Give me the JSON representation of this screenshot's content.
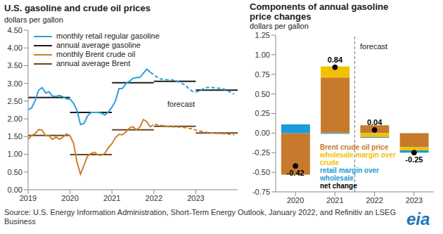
{
  "chart_data": [
    {
      "type": "line",
      "title": "U.S. gasoline and crude oil prices",
      "subtitle": "dollars per gallon",
      "annotation": "forecast",
      "forecast_start": 2022,
      "x": [
        2019,
        2019.083,
        2019.167,
        2019.25,
        2019.333,
        2019.417,
        2019.5,
        2019.583,
        2019.667,
        2019.75,
        2019.833,
        2019.917,
        2020,
        2020.083,
        2020.167,
        2020.25,
        2020.333,
        2020.417,
        2020.5,
        2020.583,
        2020.667,
        2020.75,
        2020.833,
        2020.917,
        2021,
        2021.083,
        2021.167,
        2021.25,
        2021.333,
        2021.417,
        2021.5,
        2021.583,
        2021.667,
        2021.75,
        2021.833,
        2021.917,
        2022,
        2022.083,
        2022.167,
        2022.25,
        2022.333,
        2022.417,
        2022.5,
        2022.583,
        2022.667,
        2022.75,
        2022.833,
        2022.917,
        2023,
        2023.083,
        2023.167,
        2023.25,
        2023.333,
        2023.417,
        2023.5,
        2023.583,
        2023.667,
        2023.75,
        2023.833,
        2023.917
      ],
      "xlim": [
        2019,
        2024
      ],
      "xticks": [
        2019,
        2020,
        2021,
        2022,
        2023
      ],
      "ylim": [
        0,
        4.5
      ],
      "yticks": [
        {
          "value": 0,
          "label": "0.00"
        },
        {
          "value": 0.5,
          "label": "0.50"
        },
        {
          "value": 1,
          "label": "1.00"
        },
        {
          "value": 1.5,
          "label": "1.50"
        },
        {
          "value": 2,
          "label": "2.00"
        },
        {
          "value": 2.5,
          "label": "2.50"
        },
        {
          "value": 3,
          "label": "3.00"
        },
        {
          "value": 3.5,
          "label": "3.50"
        },
        {
          "value": 4,
          "label": "4.00"
        },
        {
          "value": 4.5,
          "label": "4.50"
        }
      ],
      "grid": false,
      "legend": "upper left",
      "series": [
        {
          "name": "monthly retail regular gasoline",
          "color": "#2b9fd9",
          "values": [
            2.25,
            2.31,
            2.51,
            2.81,
            2.88,
            2.73,
            2.76,
            2.64,
            2.63,
            2.66,
            2.62,
            2.56,
            2.55,
            2.44,
            2.23,
            1.84,
            1.87,
            2.08,
            2.18,
            2.18,
            2.18,
            2.16,
            2.11,
            2.2,
            2.33,
            2.5,
            2.85,
            2.86,
            2.99,
            3.06,
            3.14,
            3.16,
            3.17,
            3.29,
            3.4,
            3.31,
            3.25,
            3.17,
            3.12,
            3.12,
            3.1,
            3.1,
            3.08,
            3.05,
            3.0,
            2.95,
            2.85,
            2.78,
            2.76,
            2.78,
            2.84,
            2.88,
            2.89,
            2.88,
            2.87,
            2.86,
            2.84,
            2.8,
            2.75,
            2.7
          ]
        },
        {
          "name": "annual average gasoline",
          "color": "#1a1a1a",
          "x": [
            2019,
            2020,
            2021,
            2022,
            2023
          ],
          "values": [
            2.6,
            2.18,
            3.02,
            3.06,
            2.81
          ]
        },
        {
          "name": "monthly Brent crude oil",
          "color": "#cc8030",
          "values": [
            1.42,
            1.53,
            1.58,
            1.7,
            1.68,
            1.52,
            1.52,
            1.42,
            1.49,
            1.42,
            1.49,
            1.57,
            1.52,
            1.31,
            0.77,
            0.44,
            0.69,
            0.95,
            1.02,
            1.06,
            0.98,
            0.97,
            1.03,
            1.19,
            1.3,
            1.47,
            1.56,
            1.55,
            1.63,
            1.74,
            1.78,
            1.69,
            1.77,
            1.98,
            1.92,
            1.77,
            1.85,
            1.83,
            1.82,
            1.8,
            1.78,
            1.78,
            1.77,
            1.77,
            1.76,
            1.75,
            1.73,
            1.72,
            1.68,
            1.66,
            1.64,
            1.62,
            1.61,
            1.6,
            1.59,
            1.58,
            1.58,
            1.57,
            1.56,
            1.55
          ]
        },
        {
          "name": "annual average Brent",
          "color": "#6b4420",
          "x": [
            2019,
            2020,
            2021,
            2022,
            2023
          ],
          "values": [
            1.53,
            0.99,
            1.69,
            1.79,
            1.6
          ]
        }
      ]
    },
    {
      "type": "bar",
      "title": "Components of annual gasoline price changes",
      "subtitle": "dollars per gallon",
      "annotation": "forecast",
      "forecast_start": "2022",
      "stacked": true,
      "grid": false,
      "legend": "lower center",
      "categories": [
        "2020",
        "2021",
        "2022",
        "2023"
      ],
      "ylim": [
        -0.75,
        1.25
      ],
      "yticks": [
        -0.75,
        {
          "value": -0.5,
          "label": "-0.50"
        },
        -0.25,
        {
          "value": 0,
          "label": "0.00"
        },
        0.25,
        {
          "value": 0.5,
          "label": "0.50"
        },
        0.75,
        {
          "value": 1,
          "label": "1.00"
        },
        1.25
      ],
      "series": [
        {
          "name": "Brent crude oil price",
          "color": "#c87a2c",
          "values": [
            -0.53,
            0.71,
            0.1,
            -0.18
          ]
        },
        {
          "name": "wholesale margin over crude",
          "color": "#f2c200",
          "values": [
            0,
            0.14,
            -0.05,
            -0.04
          ]
        },
        {
          "name": "retail margin over wholesale",
          "color": "#1a9cd8",
          "values": [
            0.11,
            -0.01,
            -0.01,
            -0.03
          ]
        },
        {
          "name": "net change",
          "color": "#000000",
          "type": "scatter",
          "marker": "circle",
          "data_labels": true,
          "values": [
            -0.42,
            0.84,
            0.04,
            -0.25
          ]
        }
      ]
    }
  ],
  "source": "Source: U.S. Energy Information Administration, Short-Term Energy Outlook, January 2022, and Refinitiv an LSEG Business",
  "logo": "eia"
}
